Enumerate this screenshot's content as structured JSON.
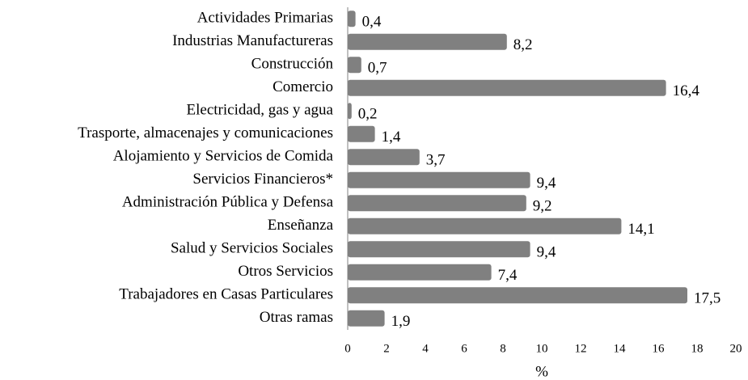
{
  "chart_data": {
    "type": "barh",
    "categories": [
      "Actividades Primarias",
      "Industrias Manufactureras",
      "Construcción",
      "Comercio",
      "Electricidad, gas y agua",
      "Trasporte, almacenajes y comunicaciones",
      "Alojamiento y Servicios de Comida",
      "Servicios Financieros*",
      "Administración Pública y Defensa",
      "Enseñanza",
      "Salud y Servicios Sociales",
      "Otros Servicios",
      "Trabajadores en Casas Particulares",
      "Otras ramas"
    ],
    "values": [
      0.4,
      8.2,
      0.7,
      16.4,
      0.2,
      1.4,
      3.7,
      9.4,
      9.2,
      14.1,
      9.4,
      7.4,
      17.5,
      1.9
    ],
    "value_labels": [
      "0,4",
      "8,2",
      "0,7",
      "16,4",
      "0,2",
      "1,4",
      "3,7",
      "9,4",
      "9,2",
      "14,1",
      "9,4",
      "7,4",
      "17,5",
      "1,9"
    ],
    "color": "#808080",
    "xlim": [
      0,
      20
    ],
    "xticks": [
      0,
      2,
      4,
      6,
      8,
      10,
      12,
      14,
      16,
      18,
      20
    ],
    "x_label": "%"
  }
}
